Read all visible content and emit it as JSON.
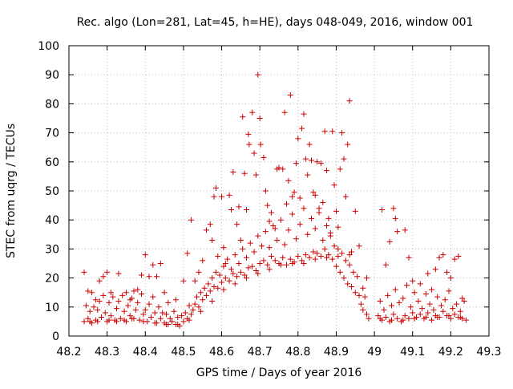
{
  "chart_data": {
    "type": "scatter",
    "title": "Rec. algo (Lon=281, Lat=45, h=HE), days 048-049, 2016, window 001",
    "xlabel": "GPS time / Days of year 2016",
    "ylabel": "STEC from uqrg / TECUs",
    "xlim": [
      48.2,
      49.3
    ],
    "ylim": [
      0,
      100
    ],
    "xticks": [
      "48.2",
      "48.3",
      "48.4",
      "48.5",
      "48.6",
      "48.7",
      "48.8",
      "48.9",
      "49",
      "49.1",
      "49.2",
      "49.3"
    ],
    "yticks": [
      "0",
      "10",
      "20",
      "30",
      "40",
      "50",
      "60",
      "70",
      "80",
      "90",
      "100"
    ],
    "xtick_values": [
      48.2,
      48.3,
      48.4,
      48.5,
      48.6,
      48.7,
      48.8,
      48.9,
      49.0,
      49.1,
      49.2,
      49.3
    ],
    "ytick_values": [
      0,
      10,
      20,
      30,
      40,
      50,
      60,
      70,
      80,
      90,
      100
    ],
    "grid": true,
    "marker": "plus",
    "color": "#cc0000",
    "points": [
      [
        48.24,
        22.0
      ],
      [
        48.25,
        15.5
      ],
      [
        48.26,
        15.0
      ],
      [
        48.27,
        12.5
      ],
      [
        48.28,
        19.0
      ],
      [
        48.29,
        20.5
      ],
      [
        48.3,
        22.0
      ],
      [
        48.31,
        15.0
      ],
      [
        48.33,
        21.5
      ],
      [
        48.35,
        15.0
      ],
      [
        48.36,
        12.5
      ],
      [
        48.37,
        15.5
      ],
      [
        48.38,
        16.0
      ],
      [
        48.39,
        21.0
      ],
      [
        48.4,
        28.0
      ],
      [
        48.41,
        20.5
      ],
      [
        48.42,
        24.5
      ],
      [
        48.43,
        20.5
      ],
      [
        48.44,
        25.0
      ],
      [
        48.45,
        15.0
      ],
      [
        48.46,
        11.5
      ],
      [
        48.48,
        12.5
      ],
      [
        48.5,
        19.0
      ],
      [
        48.51,
        28.5
      ],
      [
        48.52,
        40.0
      ],
      [
        48.53,
        19.0
      ],
      [
        48.54,
        22.0
      ],
      [
        48.55,
        26.0
      ],
      [
        48.56,
        36.5
      ],
      [
        48.57,
        38.5
      ],
      [
        48.575,
        33.0
      ],
      [
        48.58,
        48.0
      ],
      [
        48.585,
        51.0
      ],
      [
        48.59,
        27.5
      ],
      [
        48.6,
        48.0
      ],
      [
        48.605,
        30.5
      ],
      [
        48.61,
        25.0
      ],
      [
        48.62,
        48.5
      ],
      [
        48.625,
        43.5
      ],
      [
        48.63,
        56.5
      ],
      [
        48.64,
        38.5
      ],
      [
        48.645,
        44.5
      ],
      [
        48.65,
        33.0
      ],
      [
        48.655,
        75.5
      ],
      [
        48.66,
        56.0
      ],
      [
        48.665,
        43.5
      ],
      [
        48.67,
        69.5
      ],
      [
        48.672,
        66.0
      ],
      [
        48.68,
        77.0
      ],
      [
        48.685,
        63.0
      ],
      [
        48.69,
        55.5
      ],
      [
        48.695,
        90.0
      ],
      [
        48.7,
        75.0
      ],
      [
        48.702,
        66.0
      ],
      [
        48.71,
        61.5
      ],
      [
        48.715,
        50.0
      ],
      [
        48.72,
        45.0
      ],
      [
        48.725,
        39.5
      ],
      [
        48.73,
        42.5
      ],
      [
        48.74,
        37.0
      ],
      [
        48.745,
        57.5
      ],
      [
        48.75,
        58.0
      ],
      [
        48.76,
        57.5
      ],
      [
        48.765,
        77.0
      ],
      [
        48.77,
        45.5
      ],
      [
        48.775,
        53.5
      ],
      [
        48.78,
        83.0
      ],
      [
        48.785,
        48.0
      ],
      [
        48.79,
        49.5
      ],
      [
        48.795,
        59.5
      ],
      [
        48.8,
        68.0
      ],
      [
        48.805,
        47.5
      ],
      [
        48.81,
        71.5
      ],
      [
        48.815,
        76.5
      ],
      [
        48.82,
        61.0
      ],
      [
        48.825,
        55.5
      ],
      [
        48.83,
        66.0
      ],
      [
        48.835,
        60.5
      ],
      [
        48.84,
        49.5
      ],
      [
        48.845,
        48.5
      ],
      [
        48.85,
        60.0
      ],
      [
        48.855,
        44.0
      ],
      [
        48.86,
        59.5
      ],
      [
        48.865,
        46.0
      ],
      [
        48.87,
        70.5
      ],
      [
        48.875,
        57.0
      ],
      [
        48.88,
        40.5
      ],
      [
        48.885,
        35.5
      ],
      [
        48.89,
        70.5
      ],
      [
        48.895,
        52.0
      ],
      [
        48.9,
        43.0
      ],
      [
        48.905,
        37.5
      ],
      [
        48.91,
        57.5
      ],
      [
        48.915,
        70.0
      ],
      [
        48.92,
        61.0
      ],
      [
        48.925,
        48.0
      ],
      [
        48.93,
        66.0
      ],
      [
        48.935,
        81.0
      ],
      [
        48.94,
        29.0
      ],
      [
        48.95,
        43.0
      ],
      [
        48.96,
        31.0
      ],
      [
        48.97,
        16.5
      ],
      [
        48.98,
        20.0
      ],
      [
        49.02,
        43.5
      ],
      [
        49.03,
        24.5
      ],
      [
        49.04,
        32.5
      ],
      [
        49.05,
        44.0
      ],
      [
        49.055,
        40.5
      ],
      [
        49.06,
        36.0
      ],
      [
        49.08,
        36.5
      ],
      [
        49.09,
        27.0
      ],
      [
        49.1,
        19.0
      ],
      [
        49.12,
        18.0
      ],
      [
        49.14,
        21.5
      ],
      [
        49.15,
        16.0
      ],
      [
        49.16,
        23.0
      ],
      [
        49.17,
        27.0
      ],
      [
        49.18,
        28.0
      ],
      [
        49.19,
        22.0
      ],
      [
        49.2,
        20.0
      ],
      [
        49.21,
        26.5
      ],
      [
        49.22,
        27.5
      ],
      [
        49.23,
        13.0
      ],
      [
        48.24,
        5.0
      ],
      [
        48.245,
        10.5
      ],
      [
        48.25,
        6.0
      ],
      [
        48.255,
        8.5
      ],
      [
        48.26,
        4.5
      ],
      [
        48.265,
        10.0
      ],
      [
        48.27,
        5.5
      ],
      [
        48.275,
        9.0
      ],
      [
        48.28,
        12.0
      ],
      [
        48.285,
        6.5
      ],
      [
        48.29,
        14.0
      ],
      [
        48.295,
        8.0
      ],
      [
        48.3,
        5.0
      ],
      [
        48.305,
        11.5
      ],
      [
        48.31,
        7.0
      ],
      [
        48.315,
        13.5
      ],
      [
        48.32,
        5.5
      ],
      [
        48.325,
        9.5
      ],
      [
        48.33,
        12.0
      ],
      [
        48.335,
        6.0
      ],
      [
        48.34,
        14.0
      ],
      [
        48.345,
        8.5
      ],
      [
        48.35,
        5.0
      ],
      [
        48.355,
        10.5
      ],
      [
        48.36,
        7.0
      ],
      [
        48.365,
        13.0
      ],
      [
        48.37,
        6.0
      ],
      [
        48.375,
        9.0
      ],
      [
        48.38,
        11.5
      ],
      [
        48.385,
        5.5
      ],
      [
        48.39,
        14.5
      ],
      [
        48.395,
        7.5
      ],
      [
        48.4,
        9.0
      ],
      [
        48.405,
        5.0
      ],
      [
        48.41,
        11.0
      ],
      [
        48.415,
        6.5
      ],
      [
        48.42,
        13.5
      ],
      [
        48.425,
        8.0
      ],
      [
        48.43,
        4.5
      ],
      [
        48.435,
        10.0
      ],
      [
        48.44,
        6.0
      ],
      [
        48.445,
        8.0
      ],
      [
        48.45,
        4.5
      ],
      [
        48.455,
        7.5
      ],
      [
        48.46,
        4.0
      ],
      [
        48.465,
        6.0
      ],
      [
        48.47,
        5.0
      ],
      [
        48.475,
        8.5
      ],
      [
        48.48,
        4.0
      ],
      [
        48.485,
        6.5
      ],
      [
        48.49,
        3.5
      ],
      [
        48.495,
        7.0
      ],
      [
        48.5,
        5.0
      ],
      [
        48.505,
        8.0
      ],
      [
        48.51,
        6.0
      ],
      [
        48.515,
        10.5
      ],
      [
        48.52,
        7.5
      ],
      [
        48.525,
        9.0
      ],
      [
        48.53,
        11.0
      ],
      [
        48.535,
        13.5
      ],
      [
        48.54,
        10.0
      ],
      [
        48.545,
        15.0
      ],
      [
        48.55,
        12.5
      ],
      [
        48.555,
        16.5
      ],
      [
        48.56,
        14.0
      ],
      [
        48.565,
        18.0
      ],
      [
        48.57,
        15.5
      ],
      [
        48.575,
        20.0
      ],
      [
        48.58,
        17.0
      ],
      [
        48.585,
        22.0
      ],
      [
        48.59,
        16.5
      ],
      [
        48.595,
        21.0
      ],
      [
        48.6,
        18.5
      ],
      [
        48.605,
        24.0
      ],
      [
        48.61,
        20.0
      ],
      [
        48.615,
        26.5
      ],
      [
        48.62,
        19.0
      ],
      [
        48.625,
        23.0
      ],
      [
        48.63,
        21.5
      ],
      [
        48.635,
        28.0
      ],
      [
        48.64,
        20.5
      ],
      [
        48.645,
        25.0
      ],
      [
        48.65,
        22.0
      ],
      [
        48.655,
        30.0
      ],
      [
        48.66,
        21.0
      ],
      [
        48.665,
        27.0
      ],
      [
        48.67,
        23.5
      ],
      [
        48.675,
        32.0
      ],
      [
        48.68,
        24.0
      ],
      [
        48.685,
        29.0
      ],
      [
        48.69,
        22.5
      ],
      [
        48.695,
        34.5
      ],
      [
        48.7,
        25.0
      ],
      [
        48.705,
        31.0
      ],
      [
        48.71,
        26.0
      ],
      [
        48.715,
        36.0
      ],
      [
        48.72,
        24.5
      ],
      [
        48.725,
        30.5
      ],
      [
        48.73,
        27.5
      ],
      [
        48.735,
        38.0
      ],
      [
        48.74,
        26.0
      ],
      [
        48.745,
        33.0
      ],
      [
        48.75,
        25.0
      ],
      [
        48.755,
        40.0
      ],
      [
        48.76,
        27.0
      ],
      [
        48.765,
        31.5
      ],
      [
        48.77,
        24.5
      ],
      [
        48.775,
        36.5
      ],
      [
        48.78,
        26.5
      ],
      [
        48.785,
        42.0
      ],
      [
        48.79,
        25.5
      ],
      [
        48.795,
        33.5
      ],
      [
        48.8,
        27.5
      ],
      [
        48.805,
        38.5
      ],
      [
        48.81,
        26.0
      ],
      [
        48.815,
        44.0
      ],
      [
        48.82,
        28.0
      ],
      [
        48.825,
        35.0
      ],
      [
        48.83,
        27.0
      ],
      [
        48.835,
        40.5
      ],
      [
        48.84,
        29.0
      ],
      [
        48.845,
        37.0
      ],
      [
        48.85,
        28.5
      ],
      [
        48.855,
        42.5
      ],
      [
        48.86,
        27.5
      ],
      [
        48.865,
        33.0
      ],
      [
        48.87,
        30.0
      ],
      [
        48.875,
        38.0
      ],
      [
        48.88,
        28.0
      ],
      [
        48.885,
        34.5
      ],
      [
        48.89,
        26.5
      ],
      [
        48.895,
        31.0
      ],
      [
        48.9,
        24.0
      ],
      [
        48.905,
        30.0
      ],
      [
        48.91,
        22.0
      ],
      [
        48.915,
        28.5
      ],
      [
        48.92,
        20.0
      ],
      [
        48.925,
        26.0
      ],
      [
        48.93,
        18.0
      ],
      [
        48.935,
        24.5
      ],
      [
        48.94,
        17.0
      ],
      [
        48.945,
        22.0
      ],
      [
        48.95,
        15.0
      ],
      [
        48.955,
        20.5
      ],
      [
        48.96,
        14.0
      ],
      [
        48.965,
        11.0
      ],
      [
        48.97,
        9.0
      ],
      [
        48.975,
        13.5
      ],
      [
        48.98,
        7.5
      ],
      [
        48.985,
        6.0
      ],
      [
        49.01,
        7.0
      ],
      [
        49.015,
        12.0
      ],
      [
        49.02,
        5.5
      ],
      [
        49.025,
        9.0
      ],
      [
        49.03,
        6.5
      ],
      [
        49.035,
        14.0
      ],
      [
        49.04,
        5.0
      ],
      [
        49.045,
        10.5
      ],
      [
        49.05,
        7.5
      ],
      [
        49.055,
        16.0
      ],
      [
        49.06,
        6.0
      ],
      [
        49.065,
        11.5
      ],
      [
        49.07,
        5.0
      ],
      [
        49.075,
        13.0
      ],
      [
        49.08,
        7.0
      ],
      [
        49.085,
        17.5
      ],
      [
        49.09,
        6.0
      ],
      [
        49.095,
        10.0
      ],
      [
        49.1,
        8.0
      ],
      [
        49.105,
        15.0
      ],
      [
        49.11,
        6.5
      ],
      [
        49.115,
        12.0
      ],
      [
        49.12,
        7.5
      ],
      [
        49.125,
        9.5
      ],
      [
        49.13,
        6.0
      ],
      [
        49.135,
        14.5
      ],
      [
        49.14,
        8.0
      ],
      [
        49.145,
        11.0
      ],
      [
        49.15,
        5.5
      ],
      [
        49.155,
        9.0
      ],
      [
        49.16,
        7.0
      ],
      [
        49.165,
        13.5
      ],
      [
        49.17,
        6.5
      ],
      [
        49.175,
        10.5
      ],
      [
        49.18,
        8.5
      ],
      [
        49.185,
        12.5
      ],
      [
        49.19,
        7.0
      ],
      [
        49.195,
        15.5
      ],
      [
        49.2,
        6.0
      ],
      [
        49.205,
        9.5
      ],
      [
        49.21,
        7.5
      ],
      [
        49.215,
        11.0
      ],
      [
        49.22,
        6.5
      ],
      [
        49.225,
        8.5
      ],
      [
        49.23,
        6.0
      ],
      [
        49.235,
        12.0
      ],
      [
        49.24,
        5.5
      ],
      [
        48.255,
        5.0
      ],
      [
        48.275,
        5.0
      ],
      [
        48.305,
        5.5
      ],
      [
        48.325,
        5.0
      ],
      [
        48.345,
        5.5
      ],
      [
        48.365,
        6.0
      ],
      [
        48.395,
        5.0
      ],
      [
        48.425,
        4.5
      ],
      [
        48.455,
        4.0
      ],
      [
        48.485,
        4.0
      ],
      [
        48.515,
        5.5
      ],
      [
        48.545,
        8.5
      ],
      [
        48.575,
        12.0
      ],
      [
        48.605,
        16.0
      ],
      [
        48.635,
        18.0
      ],
      [
        48.665,
        20.0
      ],
      [
        48.695,
        21.5
      ],
      [
        48.725,
        23.0
      ],
      [
        48.755,
        24.5
      ],
      [
        48.785,
        25.0
      ],
      [
        48.815,
        25.0
      ],
      [
        48.845,
        26.5
      ],
      [
        48.875,
        27.0
      ],
      [
        48.905,
        27.5
      ],
      [
        48.935,
        28.0
      ],
      [
        49.015,
        6.0
      ],
      [
        49.045,
        5.5
      ],
      [
        49.075,
        5.5
      ],
      [
        49.105,
        6.0
      ],
      [
        49.135,
        6.5
      ],
      [
        49.165,
        6.5
      ],
      [
        49.195,
        7.0
      ],
      [
        49.225,
        6.5
      ]
    ]
  }
}
